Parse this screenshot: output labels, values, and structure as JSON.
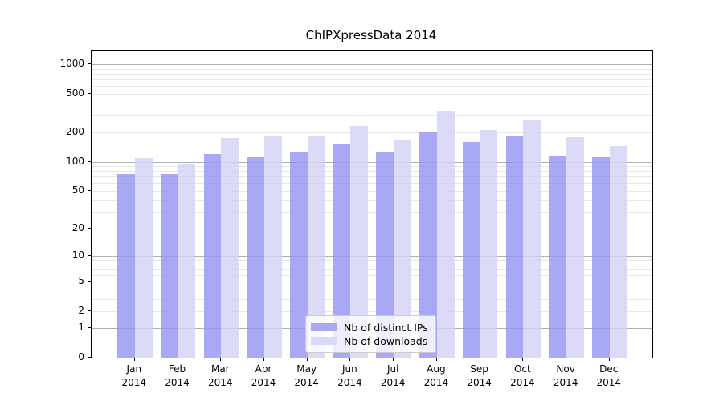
{
  "title": "ChIPXpressData 2014",
  "chart_data": {
    "type": "bar",
    "title": "ChIPXpressData 2014",
    "categories": [
      "Jan 2014",
      "Feb 2014",
      "Mar 2014",
      "Apr 2014",
      "May 2014",
      "Jun 2014",
      "Jul 2014",
      "Aug 2014",
      "Sep 2014",
      "Oct 2014",
      "Nov 2014",
      "Dec 2014"
    ],
    "series": [
      {
        "name": "Nb of distinct IPs",
        "values": [
          74,
          74,
          121,
          111,
          126,
          154,
          124,
          200,
          159,
          181,
          114,
          111
        ]
      },
      {
        "name": "Nb of downloads",
        "values": [
          108,
          95,
          175,
          182,
          181,
          233,
          168,
          336,
          213,
          266,
          180,
          146
        ]
      }
    ],
    "xlabel": "",
    "ylabel": "",
    "yscale": "log1p",
    "yticks": [
      0,
      1,
      2,
      5,
      10,
      20,
      50,
      100,
      200,
      500,
      1000
    ],
    "major_grid_values": [
      1,
      10,
      100,
      1000
    ],
    "ylim": [
      0,
      1360
    ],
    "grid": true,
    "legend_position": "lower center"
  },
  "legend": {
    "items": [
      {
        "label": "Nb of distinct IPs"
      },
      {
        "label": "Nb of downloads"
      }
    ]
  },
  "colors": {
    "ips_bar": "rgba(146,146,241,0.8)",
    "downloads_bar": "rgba(210,210,246,0.8)",
    "ips_swatch": "#aaaaf1",
    "downloads_swatch": "#d8d8f8",
    "grid_major": "#b0b0b0",
    "grid_minor": "#e7e7e7",
    "spine": "#000000",
    "background": "#ffffff"
  }
}
